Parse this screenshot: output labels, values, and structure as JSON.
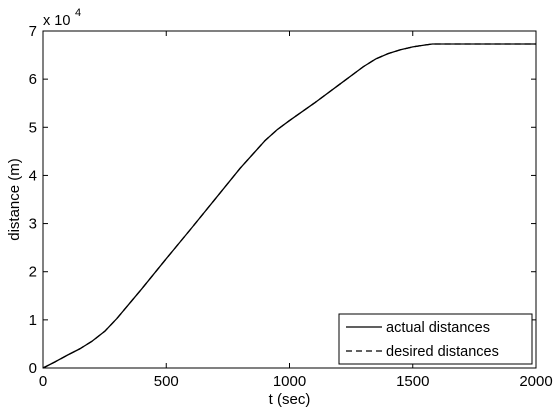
{
  "chart_data": {
    "type": "line",
    "title": "",
    "xlabel": "t (sec)",
    "ylabel": "distance (m)",
    "xlim": [
      0,
      2000
    ],
    "ylim": [
      0,
      70000
    ],
    "x_ticks": [
      0,
      500,
      1000,
      1500,
      2000
    ],
    "y_ticks": [
      0,
      1,
      2,
      3,
      4,
      5,
      6,
      7
    ],
    "y_tick_labels": [
      "0",
      "1",
      "2",
      "3",
      "4",
      "5",
      "6",
      "7"
    ],
    "y_multiplier_base": "x 10",
    "y_multiplier_exponent": "4",
    "grid": false,
    "legend_position": "bottom-right",
    "series": [
      {
        "name": "actual distances",
        "style": "solid",
        "color": "#000000",
        "x": [
          0,
          50,
          100,
          150,
          200,
          250,
          300,
          400,
          500,
          600,
          700,
          800,
          900,
          950,
          1000,
          1100,
          1200,
          1300,
          1350,
          1400,
          1450,
          1500,
          1550,
          1580,
          1600,
          1700,
          1800,
          2000
        ],
        "y": [
          0,
          1300,
          2700,
          4000,
          5600,
          7600,
          10300,
          16400,
          22700,
          28900,
          35200,
          41500,
          47200,
          49500,
          51400,
          55000,
          58800,
          62600,
          64200,
          65300,
          66100,
          66700,
          67100,
          67300,
          67300,
          67300,
          67300,
          67300
        ]
      },
      {
        "name": "desired distances",
        "style": "dashed",
        "color": "#000000",
        "x": [
          0,
          50,
          100,
          150,
          200,
          250,
          300,
          400,
          500,
          600,
          700,
          800,
          900,
          950,
          1000,
          1100,
          1200,
          1300,
          1350,
          1400,
          1450,
          1500,
          1550,
          1580,
          1600,
          1700,
          1800,
          2000
        ],
        "y": [
          0,
          1300,
          2700,
          4000,
          5600,
          7600,
          10300,
          16400,
          22700,
          28900,
          35200,
          41500,
          47200,
          49500,
          51400,
          55000,
          58800,
          62600,
          64200,
          65300,
          66100,
          66700,
          67100,
          67300,
          67300,
          67300,
          67300,
          67300
        ]
      }
    ]
  }
}
